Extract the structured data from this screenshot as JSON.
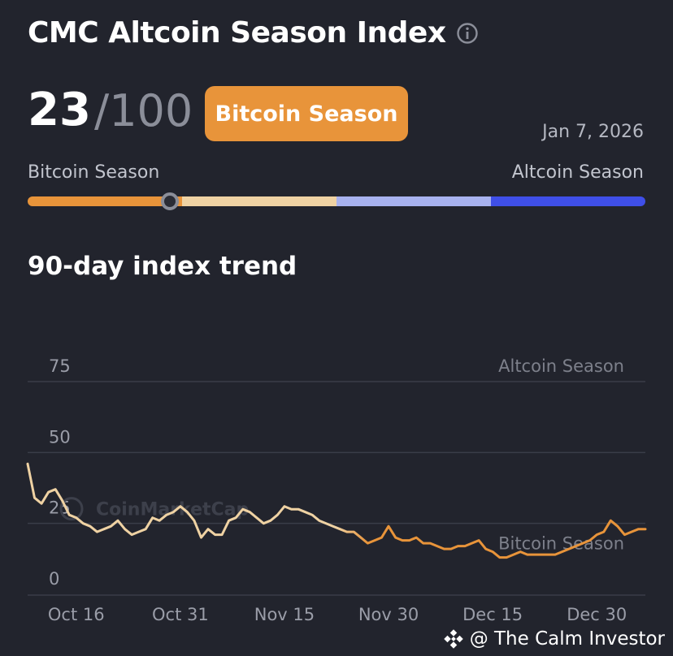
{
  "header": {
    "title": "CMC Altcoin Season Index",
    "info_icon": "info-icon"
  },
  "index": {
    "value": "23",
    "max": "/100",
    "level": 23,
    "status": "Bitcoin Season",
    "date": "Jan 7, 2026"
  },
  "scale": {
    "left_label": "Bitcoin Season",
    "right_label": "Altcoin Season"
  },
  "colors": {
    "background": "#22242d",
    "accent": "#e8943a",
    "light": "#efd2a3",
    "lavender": "#a8b2ef",
    "blue": "#3f4fe8"
  },
  "trend_title": "90-day index trend",
  "chart_data": {
    "type": "line",
    "x_ticks": [
      "Oct 16",
      "Oct 31",
      "Nov 15",
      "Nov 30",
      "Dec 15",
      "Dec 30"
    ],
    "y_ticks": [
      75,
      50,
      25,
      0
    ],
    "ylim": [
      0,
      75
    ],
    "grid": true,
    "annotations": [
      {
        "text": "Altcoin Season",
        "y": 75
      },
      {
        "text": "Bitcoin Season",
        "y": 12.5
      }
    ],
    "watermark": "CoinMarketCap",
    "x_start": "Oct 9",
    "values": [
      46,
      34,
      32,
      36,
      37,
      33,
      28,
      27,
      25,
      24,
      22,
      23,
      24,
      26,
      23,
      21,
      22,
      23,
      27,
      26,
      28,
      29,
      31,
      29,
      26,
      20,
      23,
      21,
      21,
      26,
      27,
      30,
      29,
      27,
      25,
      26,
      28,
      31,
      30,
      30,
      29,
      28,
      26,
      25,
      24,
      23,
      22,
      22,
      20,
      18,
      19,
      20,
      24,
      20,
      19,
      19,
      20,
      18,
      18,
      17,
      16,
      16,
      17,
      17,
      18,
      19,
      16,
      15,
      13,
      13,
      14,
      15,
      14,
      14,
      14,
      14,
      14,
      15,
      16,
      17,
      18,
      19,
      21,
      22,
      26,
      24,
      21,
      22,
      23,
      23
    ]
  },
  "footer": {
    "watermark": "@ The Calm Investor"
  }
}
